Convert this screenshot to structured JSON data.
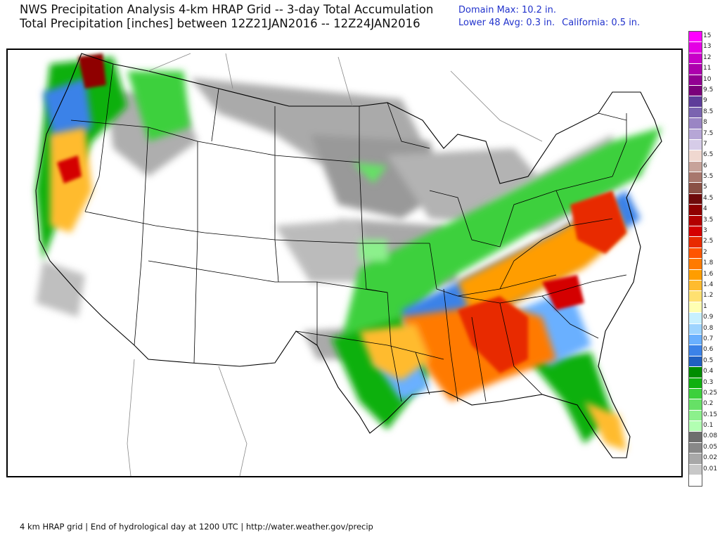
{
  "header": {
    "title_line1": "NWS Precipitation Analysis 4-km HRAP Grid -- 3-day Total Accumulation",
    "title_line2": "Total Precipitation [inches] between 12Z21JAN2016 -- 12Z24JAN2016"
  },
  "stats": {
    "domain_max": "Domain Max: 10.2 in.",
    "lower48_avg": "Lower 48 Avg: 0.3 in.",
    "california": "California: 0.5 in."
  },
  "legend": {
    "items": [
      {
        "label": "15",
        "color": "#ff00ff"
      },
      {
        "label": "13",
        "color": "#e400e4"
      },
      {
        "label": "12",
        "color": "#c800c8"
      },
      {
        "label": "11",
        "color": "#ad00ad"
      },
      {
        "label": "10",
        "color": "#920092"
      },
      {
        "label": "9.5",
        "color": "#7a007a"
      },
      {
        "label": "9",
        "color": "#5e3c99"
      },
      {
        "label": "8.5",
        "color": "#7b64b0"
      },
      {
        "label": "8",
        "color": "#9a85c4"
      },
      {
        "label": "7.5",
        "color": "#b6a6d6"
      },
      {
        "label": "7",
        "color": "#d6cce8"
      },
      {
        "label": "6.5",
        "color": "#f0d8d0"
      },
      {
        "label": "6",
        "color": "#c7a39a"
      },
      {
        "label": "5.5",
        "color": "#a8776d"
      },
      {
        "label": "5",
        "color": "#8a5045"
      },
      {
        "label": "4.5",
        "color": "#6e0a0a"
      },
      {
        "label": "4",
        "color": "#8f0000"
      },
      {
        "label": "3.5",
        "color": "#b30000"
      },
      {
        "label": "3",
        "color": "#d40000"
      },
      {
        "label": "2.5",
        "color": "#e82a00"
      },
      {
        "label": "2",
        "color": "#ff5500"
      },
      {
        "label": "1.8",
        "color": "#ff7a00"
      },
      {
        "label": "1.6",
        "color": "#ff9d00"
      },
      {
        "label": "1.4",
        "color": "#ffbb2e"
      },
      {
        "label": "1.2",
        "color": "#ffe070"
      },
      {
        "label": "1",
        "color": "#ffffb3"
      },
      {
        "label": "0.9",
        "color": "#c8f0ff"
      },
      {
        "label": "0.8",
        "color": "#9ed4ff"
      },
      {
        "label": "0.7",
        "color": "#6ab0ff"
      },
      {
        "label": "0.6",
        "color": "#3b82e8"
      },
      {
        "label": "0.5",
        "color": "#2060c0"
      },
      {
        "label": "0.4",
        "color": "#008c00"
      },
      {
        "label": "0.3",
        "color": "#10b010"
      },
      {
        "label": "0.25",
        "color": "#3cd03c"
      },
      {
        "label": "0.2",
        "color": "#66e066"
      },
      {
        "label": "0.15",
        "color": "#8cf08c"
      },
      {
        "label": "0.1",
        "color": "#b2ffb2"
      },
      {
        "label": "0.08",
        "color": "#6e6e6e"
      },
      {
        "label": "0.05",
        "color": "#888888"
      },
      {
        "label": "0.02",
        "color": "#a8a8a8"
      },
      {
        "label": "0.01",
        "color": "#c8c8c8"
      },
      {
        "label": "",
        "color": "#ffffff"
      }
    ]
  },
  "footer": {
    "text": "4 km HRAP grid | End of hydrological day at 1200 UTC | http://water.weather.gov/precip"
  }
}
